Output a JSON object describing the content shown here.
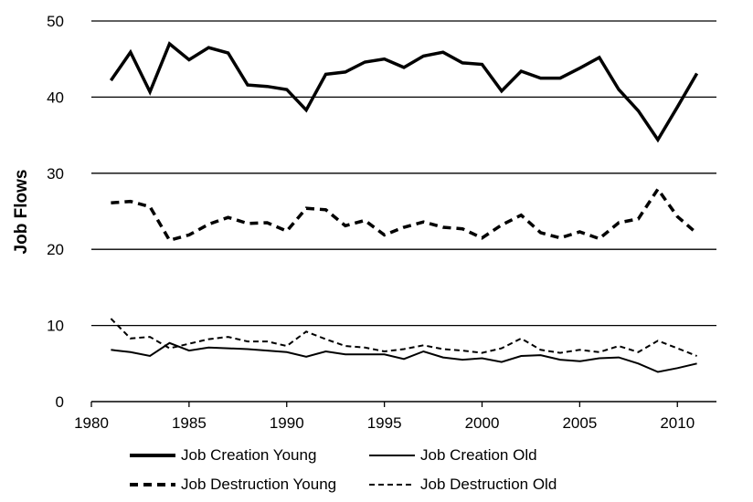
{
  "chart_data": {
    "type": "line",
    "ylabel": "Job Flows",
    "xlabel": "",
    "xlim": [
      1980,
      2012
    ],
    "ylim": [
      0,
      50
    ],
    "x_ticks": [
      1980,
      1985,
      1990,
      1995,
      2000,
      2005,
      2010
    ],
    "y_ticks": [
      0,
      10,
      20,
      30,
      40,
      50
    ],
    "grid": "horizontal",
    "legend_position": "bottom",
    "x": [
      1981,
      1982,
      1983,
      1984,
      1985,
      1986,
      1987,
      1988,
      1989,
      1990,
      1991,
      1992,
      1993,
      1994,
      1995,
      1996,
      1997,
      1998,
      1999,
      2000,
      2001,
      2002,
      2003,
      2004,
      2005,
      2006,
      2007,
      2008,
      2009,
      2010,
      2011
    ],
    "series": [
      {
        "name": "Job Creation Young",
        "style": "solid-thick",
        "color": "#000000",
        "values": [
          42.2,
          45.9,
          40.7,
          47.0,
          44.9,
          46.5,
          45.8,
          41.6,
          41.4,
          41.0,
          38.3,
          43.0,
          43.3,
          44.6,
          45.0,
          43.9,
          45.4,
          45.9,
          44.5,
          44.3,
          40.8,
          43.4,
          42.5,
          42.5,
          43.8,
          45.2,
          41.0,
          38.2,
          34.4,
          38.7,
          43.1
        ]
      },
      {
        "name": "Job Creation Old",
        "style": "solid-thin",
        "color": "#000000",
        "values": [
          6.8,
          6.5,
          6.0,
          7.7,
          6.7,
          7.1,
          7.0,
          6.9,
          6.7,
          6.5,
          5.9,
          6.6,
          6.2,
          6.2,
          6.2,
          5.6,
          6.6,
          5.8,
          5.5,
          5.7,
          5.2,
          6.0,
          6.1,
          5.5,
          5.3,
          5.7,
          5.8,
          5.0,
          3.9,
          4.4,
          5.0
        ]
      },
      {
        "name": "Job Destruction Young",
        "style": "dashed-thick",
        "color": "#000000",
        "values": [
          26.1,
          26.3,
          25.6,
          21.2,
          21.9,
          23.3,
          24.2,
          23.4,
          23.5,
          22.4,
          25.4,
          25.2,
          23.1,
          23.8,
          21.9,
          22.9,
          23.6,
          22.9,
          22.7,
          21.5,
          23.2,
          24.5,
          22.2,
          21.5,
          22.3,
          21.4,
          23.5,
          24.0,
          27.9,
          24.3,
          22.1
        ]
      },
      {
        "name": "Job Destruction Old",
        "style": "dashed-thin",
        "color": "#000000",
        "values": [
          10.9,
          8.3,
          8.5,
          7.0,
          7.6,
          8.2,
          8.5,
          7.9,
          7.9,
          7.3,
          9.2,
          8.2,
          7.3,
          7.1,
          6.6,
          6.9,
          7.4,
          6.9,
          6.7,
          6.4,
          7.0,
          8.3,
          6.8,
          6.4,
          6.8,
          6.5,
          7.3,
          6.5,
          8.0,
          7.0,
          6.0
        ]
      }
    ]
  }
}
